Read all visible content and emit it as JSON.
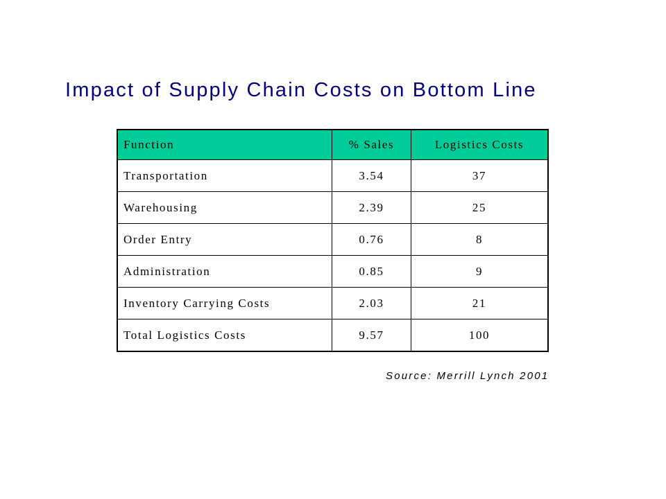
{
  "title": "Impact of Supply Chain Costs on Bottom Line",
  "table": {
    "headers": {
      "function": "Function",
      "sales": "% Sales",
      "logistics": "Logistics Costs"
    },
    "rows": [
      {
        "function": "Transportation",
        "sales": "3.54",
        "logistics": "37"
      },
      {
        "function": "Warehousing",
        "sales": "2.39",
        "logistics": "25"
      },
      {
        "function": "Order Entry",
        "sales": "0.76",
        "logistics": "8"
      },
      {
        "function": "Administration",
        "sales": "0.85",
        "logistics": "9"
      },
      {
        "function": "Inventory Carrying Costs",
        "sales": "2.03",
        "logistics": "21"
      },
      {
        "function": "Total Logistics Costs",
        "sales": "9.57",
        "logistics": "100"
      }
    ],
    "header_color": "#00cc99"
  },
  "source": "Source: Merrill Lynch 2001",
  "colors": {
    "title": "#000080"
  }
}
